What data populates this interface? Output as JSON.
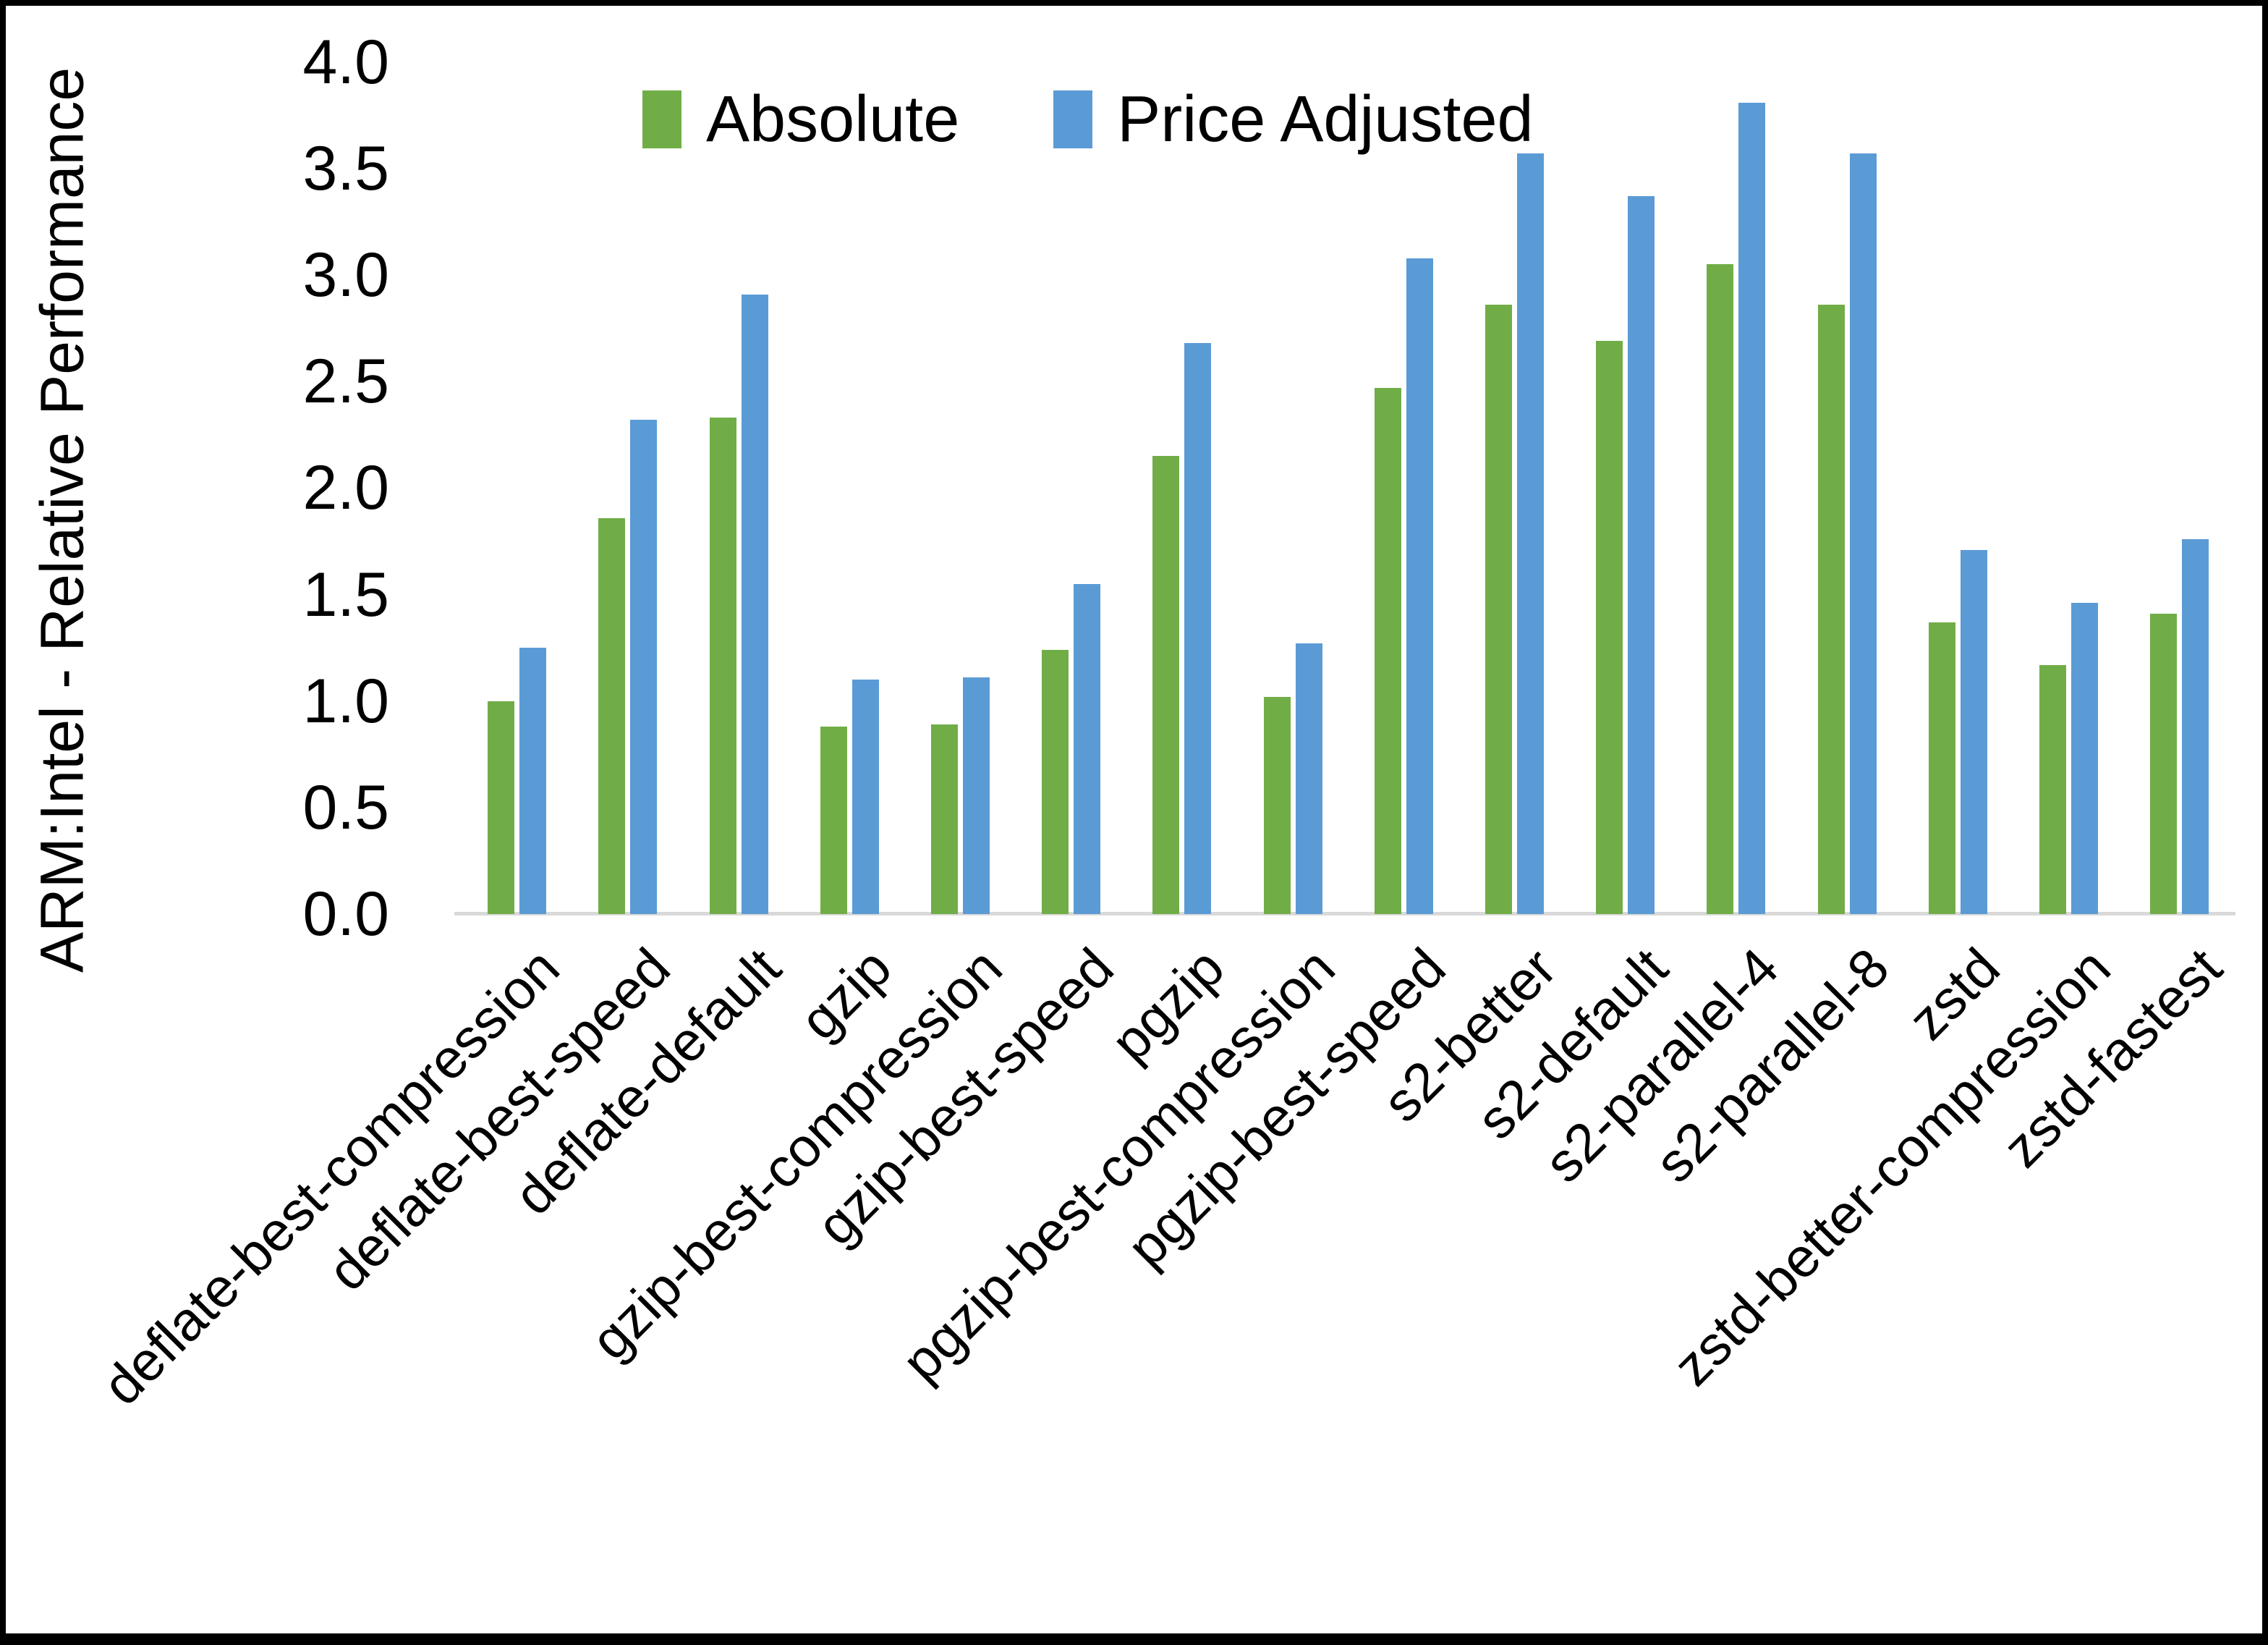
{
  "chart_data": {
    "type": "bar",
    "title": "",
    "xlabel": "",
    "ylabel": "ARM:Intel - Relative Performance",
    "ylim": [
      0.0,
      4.0
    ],
    "ytick_step": 0.5,
    "ytick_labels": [
      "0.0",
      "0.5",
      "1.0",
      "1.5",
      "2.0",
      "2.5",
      "3.0",
      "3.5",
      "4.0"
    ],
    "grid": false,
    "legend_position": "top-center",
    "categories": [
      "deflate-best-compression",
      "deflate-best-speed",
      "deflate-default",
      "gzip",
      "gzip-best-compression",
      "gzip-best-speed",
      "pgzip",
      "pgzip-best-compression",
      "pgzip-best-speed",
      "s2-better",
      "s2-default",
      "s2-parallel-4",
      "s2-parallel-8",
      "zstd",
      "zstd-better-compression",
      "zstd-fastest"
    ],
    "series": [
      {
        "name": "Absolute",
        "color": "#70AD47",
        "values": [
          1.0,
          1.86,
          2.33,
          0.88,
          0.89,
          1.24,
          2.15,
          1.02,
          2.47,
          2.86,
          2.69,
          3.05,
          2.86,
          1.37,
          1.17,
          1.41
        ]
      },
      {
        "name": "Price Adjusted",
        "color": "#5B9BD5",
        "values": [
          1.25,
          2.32,
          2.91,
          1.1,
          1.11,
          1.55,
          2.68,
          1.27,
          3.08,
          3.57,
          3.37,
          3.81,
          3.57,
          1.71,
          1.46,
          1.76
        ]
      }
    ],
    "axis_line_color": "#d9d9d9"
  }
}
